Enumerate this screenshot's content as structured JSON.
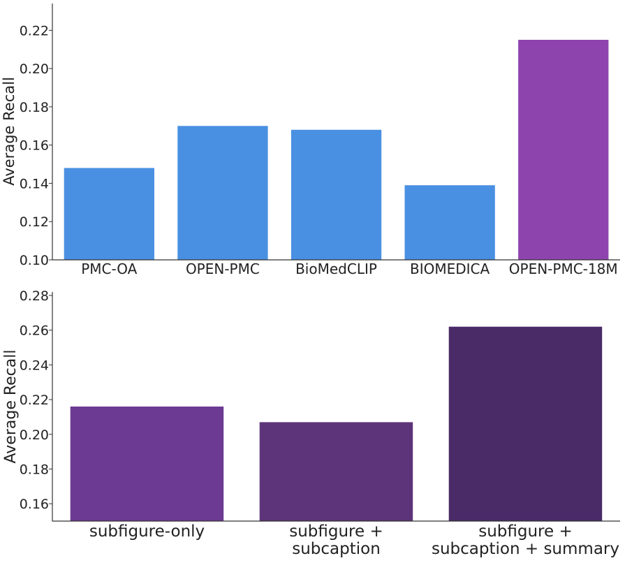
{
  "chart_data": [
    {
      "type": "bar",
      "categories": [
        "PMC-OA",
        "OPEN-PMC",
        "BioMedCLIP",
        "BIOMEDICA",
        "OPEN-PMC-18M"
      ],
      "values": [
        0.148,
        0.17,
        0.168,
        0.139,
        0.215
      ],
      "colors": [
        "#4a90e2",
        "#4a90e2",
        "#4a90e2",
        "#4a90e2",
        "#8e44ad"
      ],
      "title": "",
      "xlabel": "",
      "ylabel": "Average Recall",
      "ylim": [
        0.1,
        0.234
      ],
      "yticks": [
        "0.10",
        "0.12",
        "0.14",
        "0.16",
        "0.18",
        "0.20",
        "0.22"
      ],
      "grid": false
    },
    {
      "type": "bar",
      "categories": [
        "subfigure-only",
        "subfigure +\nsubcaption",
        "subfigure +\nsubcaption + summary"
      ],
      "values": [
        0.216,
        0.207,
        0.262
      ],
      "colors": [
        "#6c3a93",
        "#5d3479",
        "#4a2b68"
      ],
      "title": "",
      "xlabel": "",
      "ylabel": "Average Recall",
      "ylim": [
        0.15,
        0.282
      ],
      "yticks": [
        "0.16",
        "0.18",
        "0.20",
        "0.22",
        "0.24",
        "0.26",
        "0.28"
      ],
      "grid": false
    }
  ]
}
